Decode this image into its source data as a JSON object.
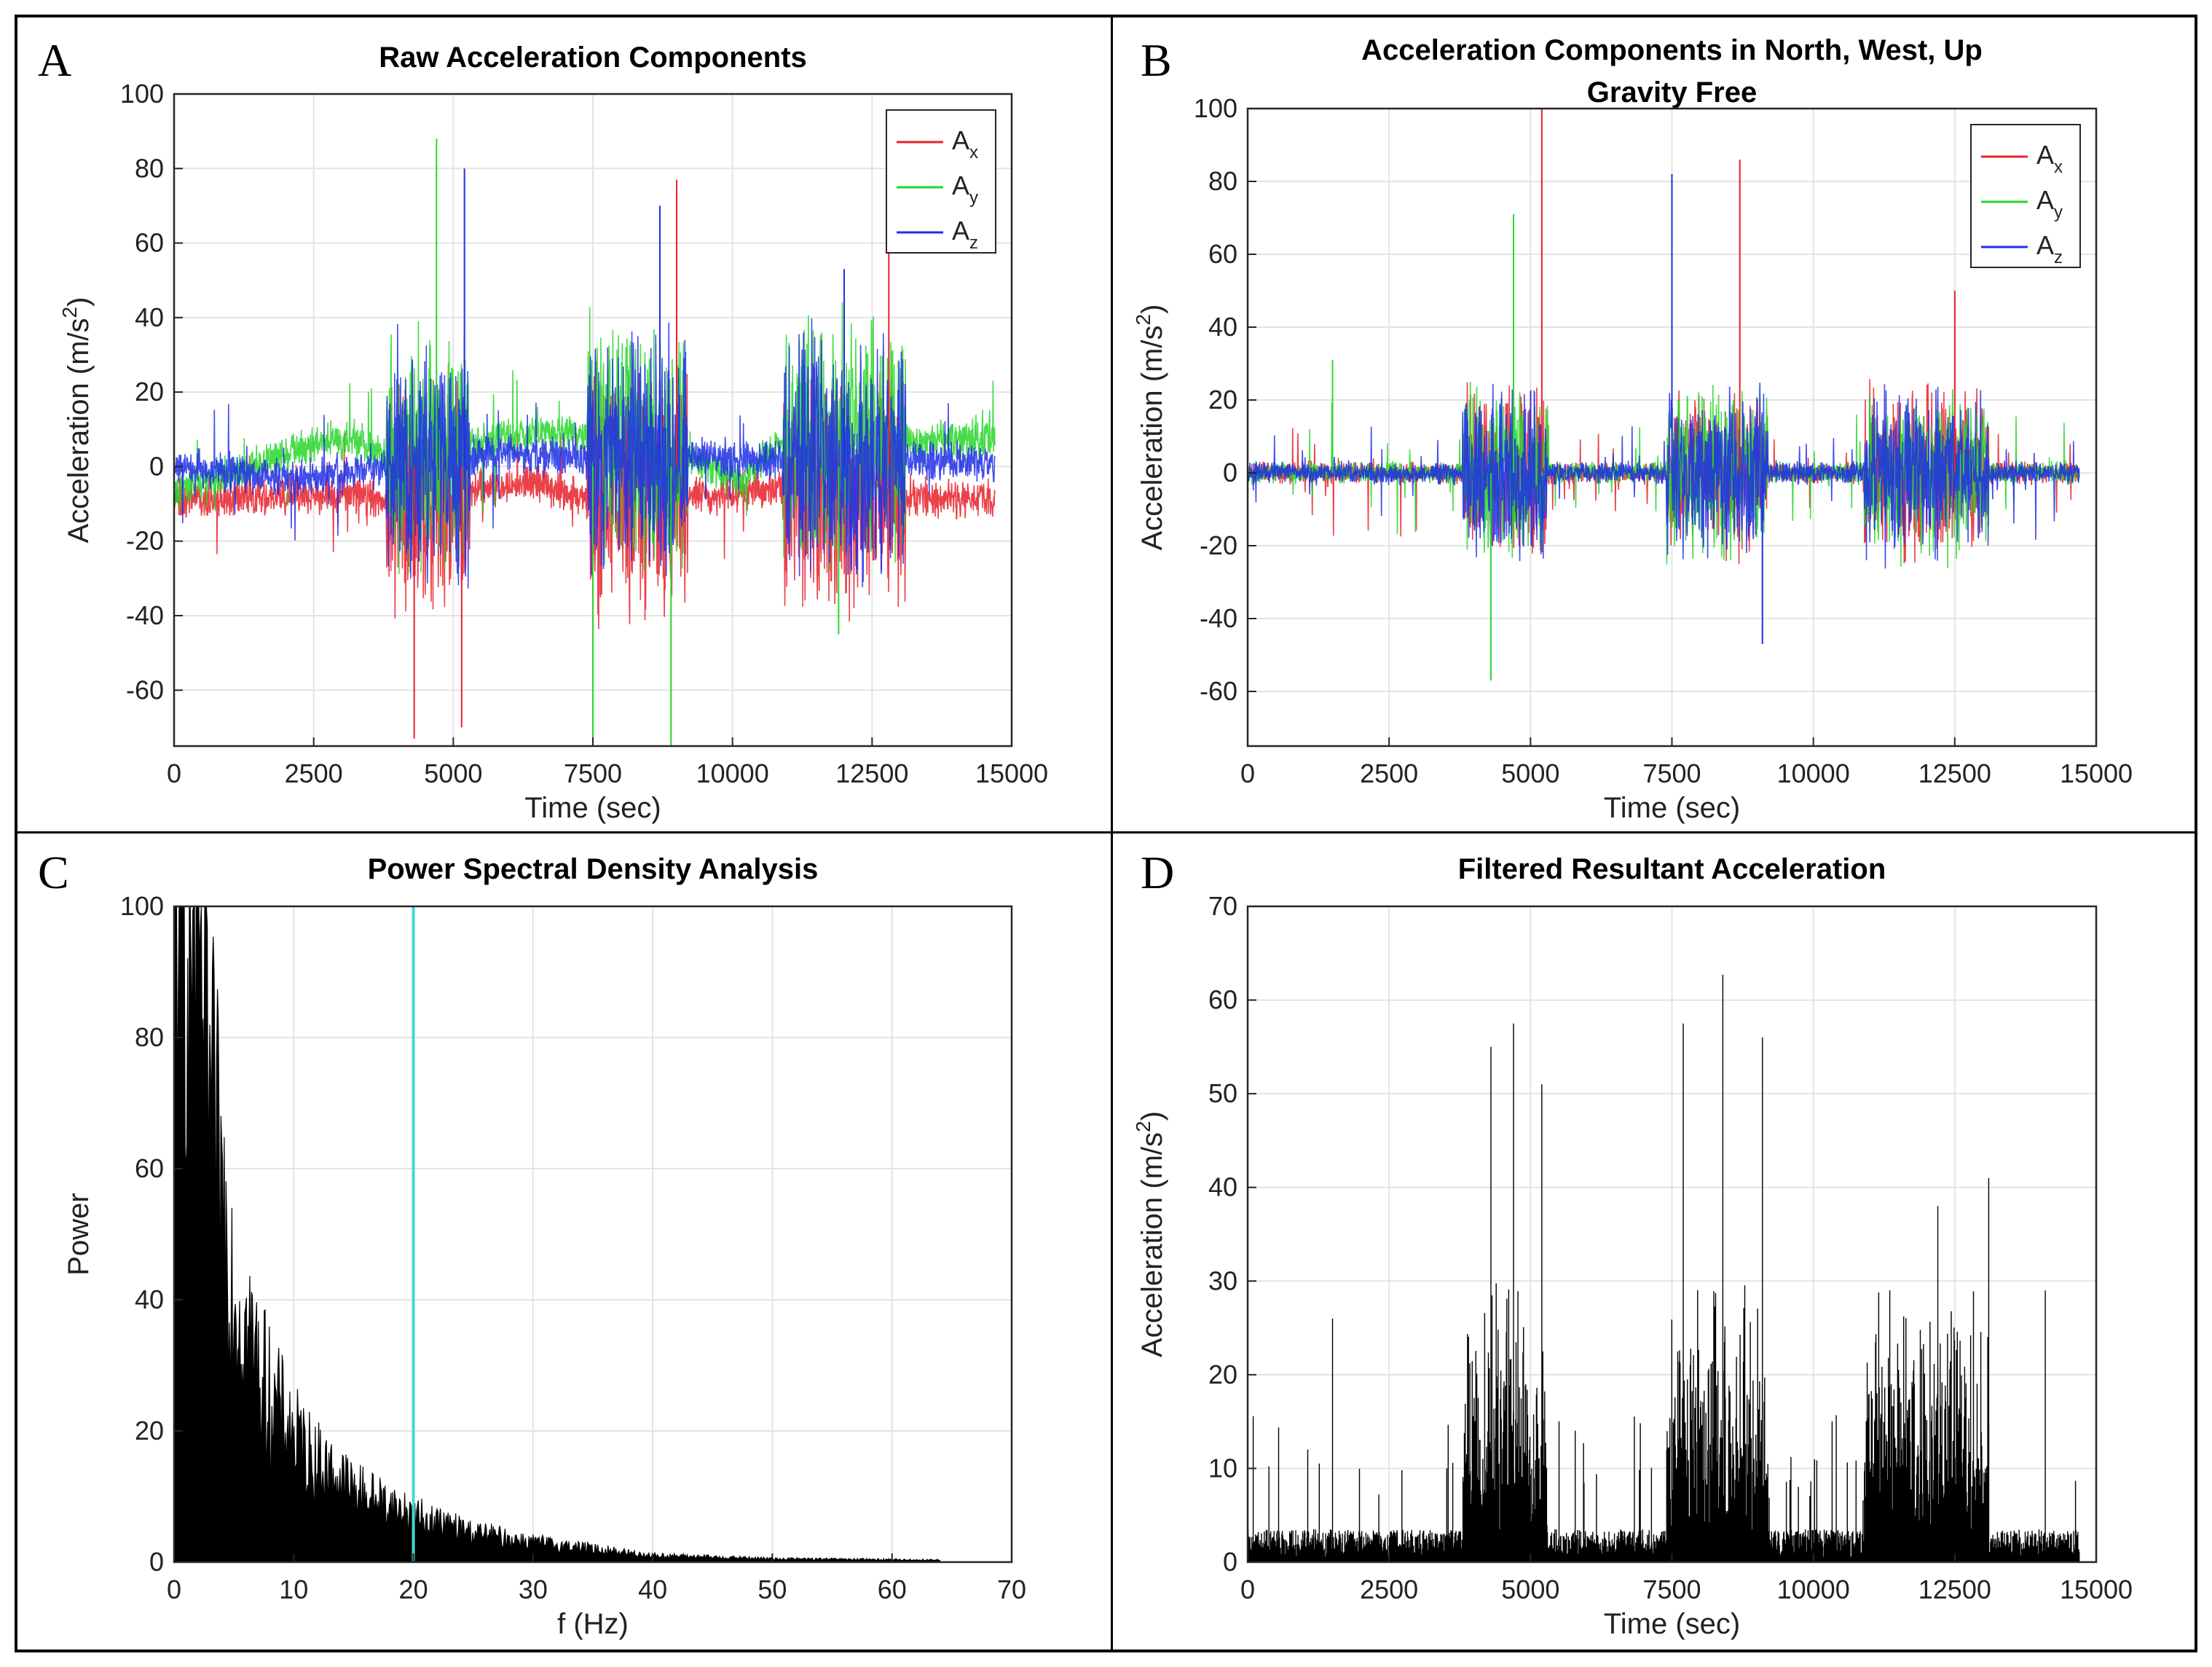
{
  "chart_data": [
    {
      "id": "A",
      "type": "line",
      "panel_letter": "A",
      "title": "Raw Acceleration Components",
      "title_line2": "",
      "xlabel": "Time (sec)",
      "ylabel": "Acceleration (m/s",
      "ylabel_sup": "2",
      "ylabel_end": ")",
      "xlim": [
        0,
        15000
      ],
      "ylim": [
        -75,
        100
      ],
      "xticks": [
        0,
        2500,
        5000,
        7500,
        10000,
        12500,
        15000
      ],
      "xtick_labels": [
        "0",
        "2500",
        "5000",
        "7500",
        "10000",
        "12500",
        "15000"
      ],
      "yticks": [
        -60,
        -40,
        -20,
        0,
        20,
        40,
        60,
        80,
        100
      ],
      "ytick_labels": [
        "-60",
        "-40",
        "-20",
        "0",
        "20",
        "40",
        "60",
        "80",
        "100"
      ],
      "grid": true,
      "legend": "top-right",
      "series": [
        {
          "name": "A",
          "sub": "x",
          "color": "#e8202a",
          "baselines": [
            [
              0,
              -9
            ],
            [
              3200,
              -7
            ],
            [
              3800,
              -9
            ],
            [
              6500,
              -4
            ],
            [
              7400,
              -9
            ],
            [
              9200,
              -8
            ],
            [
              10800,
              -6
            ],
            [
              14700,
              -9
            ]
          ]
        },
        {
          "name": "A",
          "sub": "y",
          "color": "#27d62a",
          "baselines": [
            [
              0,
              -6
            ],
            [
              1800,
              2
            ],
            [
              2500,
              6
            ],
            [
              3200,
              8
            ],
            [
              3800,
              2
            ],
            [
              6500,
              9
            ],
            [
              7400,
              9
            ],
            [
              9200,
              2
            ],
            [
              10200,
              -4
            ],
            [
              10800,
              6
            ],
            [
              14700,
              8
            ]
          ]
        },
        {
          "name": "A",
          "sub": "z",
          "color": "#1f2ee8",
          "baselines": [
            [
              0,
              0
            ],
            [
              2000,
              -3
            ],
            [
              3200,
              -2
            ],
            [
              3800,
              0
            ],
            [
              6000,
              4
            ],
            [
              7400,
              2
            ],
            [
              9200,
              3
            ],
            [
              10800,
              2
            ],
            [
              14700,
              1
            ]
          ]
        }
      ],
      "active_segments": [
        [
          3800,
          5300
        ],
        [
          7400,
          9200
        ],
        [
          10900,
          13100
        ]
      ],
      "peaks_x": [
        [
          4300,
          -73
        ],
        [
          4700,
          88
        ],
        [
          5200,
          80
        ],
        [
          5150,
          -70
        ],
        [
          7500,
          -75
        ],
        [
          8700,
          70
        ],
        [
          9000,
          77
        ],
        [
          8900,
          -75
        ],
        [
          12000,
          53
        ],
        [
          12800,
          58
        ],
        [
          11900,
          -45
        ]
      ]
    },
    {
      "id": "B",
      "type": "line",
      "panel_letter": "B",
      "title": "Acceleration Components in North, West, Up",
      "title_line2": "Gravity Free",
      "xlabel": "Time (sec)",
      "ylabel": "Acceleration (m/s",
      "ylabel_sup": "2",
      "ylabel_end": ")",
      "xlim": [
        0,
        15000
      ],
      "ylim": [
        -75,
        100
      ],
      "xticks": [
        0,
        2500,
        5000,
        7500,
        10000,
        12500,
        15000
      ],
      "xtick_labels": [
        "0",
        "2500",
        "5000",
        "7500",
        "10000",
        "12500",
        "15000"
      ],
      "yticks": [
        -60,
        -40,
        -20,
        0,
        20,
        40,
        60,
        80,
        100
      ],
      "ytick_labels": [
        "-60",
        "-40",
        "-20",
        "0",
        "20",
        "40",
        "60",
        "80",
        "100"
      ],
      "grid": true,
      "legend": "top-right",
      "series": [
        {
          "name": "A",
          "sub": "x",
          "color": "#e8202a"
        },
        {
          "name": "A",
          "sub": "y",
          "color": "#27d62a"
        },
        {
          "name": "A",
          "sub": "z",
          "color": "#1f2ee8"
        }
      ],
      "active_segments": [
        [
          3800,
          5300
        ],
        [
          7400,
          9200
        ],
        [
          10900,
          13100
        ]
      ],
      "peaks": [
        [
          5200,
          100
        ],
        [
          4700,
          71
        ],
        [
          7500,
          82
        ],
        [
          8700,
          86
        ],
        [
          4300,
          -57
        ],
        [
          9100,
          -47
        ],
        [
          12500,
          50
        ],
        [
          1500,
          31
        ]
      ]
    },
    {
      "id": "C",
      "type": "area",
      "panel_letter": "C",
      "title": "Power Spectral Density Analysis",
      "title_line2": "",
      "xlabel": "f (Hz)",
      "ylabel": "Power",
      "ylabel_sup": "",
      "ylabel_end": "",
      "xlim": [
        0,
        70
      ],
      "ylim": [
        0,
        100
      ],
      "xticks": [
        0,
        10,
        20,
        30,
        40,
        50,
        60,
        70
      ],
      "xtick_labels": [
        "0",
        "10",
        "20",
        "30",
        "40",
        "50",
        "60",
        "70"
      ],
      "yticks": [
        0,
        20,
        40,
        60,
        80,
        100
      ],
      "ytick_labels": [
        "0",
        "20",
        "40",
        "60",
        "80",
        "100"
      ],
      "grid": true,
      "cutoff_hz": 20,
      "cutoff_color": "#48d6d0",
      "fill_color": "#000000",
      "envelope": [
        [
          0,
          100
        ],
        [
          2,
          100
        ],
        [
          3,
          70
        ],
        [
          4,
          55
        ],
        [
          5,
          42
        ],
        [
          6,
          35
        ],
        [
          8,
          25
        ],
        [
          10,
          19
        ],
        [
          12,
          15
        ],
        [
          15,
          11
        ],
        [
          20,
          7
        ],
        [
          25,
          4.5
        ],
        [
          30,
          3
        ],
        [
          35,
          2
        ],
        [
          40,
          1
        ],
        [
          50,
          0.5
        ],
        [
          64,
          0.3
        ]
      ]
    },
    {
      "id": "D",
      "type": "line",
      "panel_letter": "D",
      "title": "Filtered Resultant Acceleration",
      "title_line2": "",
      "xlabel": "Time (sec)",
      "ylabel": "Acceleration (m/s",
      "ylabel_sup": "2",
      "ylabel_end": ")",
      "xlim": [
        0,
        15000
      ],
      "ylim": [
        0,
        70
      ],
      "xticks": [
        0,
        2500,
        5000,
        7500,
        10000,
        12500,
        15000
      ],
      "xtick_labels": [
        "0",
        "2500",
        "5000",
        "7500",
        "10000",
        "12500",
        "15000"
      ],
      "yticks": [
        0,
        10,
        20,
        30,
        40,
        50,
        60,
        70
      ],
      "ytick_labels": [
        "0",
        "10",
        "20",
        "30",
        "40",
        "50",
        "60",
        "70"
      ],
      "grid": true,
      "line_color": "#000000",
      "active_segments": [
        [
          3800,
          5300
        ],
        [
          7400,
          9200
        ],
        [
          10900,
          13100
        ]
      ],
      "peaks": [
        [
          4700,
          57.5
        ],
        [
          4300,
          55
        ],
        [
          5200,
          51
        ],
        [
          7700,
          57.5
        ],
        [
          8400,
          62.7
        ],
        [
          9100,
          56
        ],
        [
          12200,
          38
        ],
        [
          13100,
          41
        ],
        [
          14100,
          29
        ],
        [
          1500,
          26
        ]
      ]
    }
  ]
}
